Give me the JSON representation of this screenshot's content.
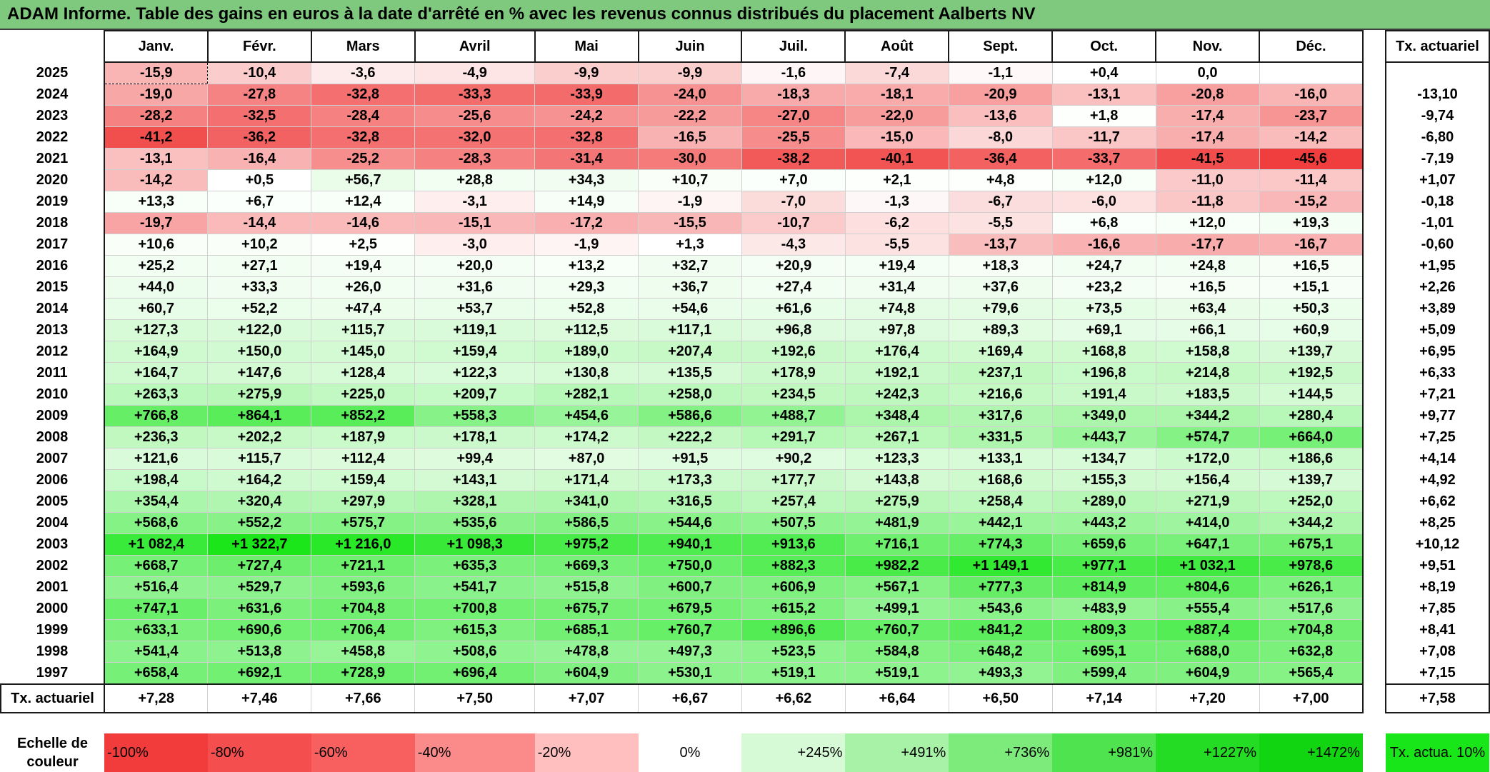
{
  "title": "ADAM Informe. Table des gains en euros à la date d'arrêté en % avec les revenus connus distribués du placement Aalberts NV",
  "months": [
    "Janv.",
    "Févr.",
    "Mars",
    "Avril",
    "Mai",
    "Juin",
    "Juil.",
    "Août",
    "Sept.",
    "Oct.",
    "Nov.",
    "Déc."
  ],
  "actuarial_header": "Tx. actuariel",
  "rows": [
    {
      "year": "2025",
      "values": [
        "-15,9",
        "-10,4",
        "-3,6",
        "-4,9",
        "-9,9",
        "-9,9",
        "-1,6",
        "-7,4",
        "-1,1",
        "+0,4",
        "0,0",
        ""
      ],
      "rate": ""
    },
    {
      "year": "2024",
      "values": [
        "-19,0",
        "-27,8",
        "-32,8",
        "-33,3",
        "-33,9",
        "-24,0",
        "-18,3",
        "-18,1",
        "-20,9",
        "-13,1",
        "-20,8",
        "-16,0"
      ],
      "rate": "-13,10"
    },
    {
      "year": "2023",
      "values": [
        "-28,2",
        "-32,5",
        "-28,4",
        "-25,6",
        "-24,2",
        "-22,2",
        "-27,0",
        "-22,0",
        "-13,6",
        "+1,8",
        "-17,4",
        "-23,7"
      ],
      "rate": "-9,74"
    },
    {
      "year": "2022",
      "values": [
        "-41,2",
        "-36,2",
        "-32,8",
        "-32,0",
        "-32,8",
        "-16,5",
        "-25,5",
        "-15,0",
        "-8,0",
        "-11,7",
        "-17,4",
        "-14,2"
      ],
      "rate": "-6,80"
    },
    {
      "year": "2021",
      "values": [
        "-13,1",
        "-16,4",
        "-25,2",
        "-28,3",
        "-31,4",
        "-30,0",
        "-38,2",
        "-40,1",
        "-36,4",
        "-33,7",
        "-41,5",
        "-45,6"
      ],
      "rate": "-7,19"
    },
    {
      "year": "2020",
      "values": [
        "-14,2",
        "+0,5",
        "+56,7",
        "+28,8",
        "+34,3",
        "+10,7",
        "+7,0",
        "+2,1",
        "+4,8",
        "+12,0",
        "-11,0",
        "-11,4"
      ],
      "rate": "+1,07"
    },
    {
      "year": "2019",
      "values": [
        "+13,3",
        "+6,7",
        "+12,4",
        "-3,1",
        "+14,9",
        "-1,9",
        "-7,0",
        "-1,3",
        "-6,7",
        "-6,0",
        "-11,8",
        "-15,2"
      ],
      "rate": "-0,18"
    },
    {
      "year": "2018",
      "values": [
        "-19,7",
        "-14,4",
        "-14,6",
        "-15,1",
        "-17,2",
        "-15,5",
        "-10,7",
        "-6,2",
        "-5,5",
        "+6,8",
        "+12,0",
        "+19,3"
      ],
      "rate": "-1,01"
    },
    {
      "year": "2017",
      "values": [
        "+10,6",
        "+10,2",
        "+2,5",
        "-3,0",
        "-1,9",
        "+1,3",
        "-4,3",
        "-5,5",
        "-13,7",
        "-16,6",
        "-17,7",
        "-16,7"
      ],
      "rate": "-0,60"
    },
    {
      "year": "2016",
      "values": [
        "+25,2",
        "+27,1",
        "+19,4",
        "+20,0",
        "+13,2",
        "+32,7",
        "+20,9",
        "+19,4",
        "+18,3",
        "+24,7",
        "+24,8",
        "+16,5"
      ],
      "rate": "+1,95"
    },
    {
      "year": "2015",
      "values": [
        "+44,0",
        "+33,3",
        "+26,0",
        "+31,6",
        "+29,3",
        "+36,7",
        "+27,4",
        "+31,4",
        "+37,6",
        "+23,2",
        "+16,5",
        "+15,1"
      ],
      "rate": "+2,26"
    },
    {
      "year": "2014",
      "values": [
        "+60,7",
        "+52,2",
        "+47,4",
        "+53,7",
        "+52,8",
        "+54,6",
        "+61,6",
        "+74,8",
        "+79,6",
        "+73,5",
        "+63,4",
        "+50,3"
      ],
      "rate": "+3,89"
    },
    {
      "year": "2013",
      "values": [
        "+127,3",
        "+122,0",
        "+115,7",
        "+119,1",
        "+112,5",
        "+117,1",
        "+96,8",
        "+97,8",
        "+89,3",
        "+69,1",
        "+66,1",
        "+60,9"
      ],
      "rate": "+5,09"
    },
    {
      "year": "2012",
      "values": [
        "+164,9",
        "+150,0",
        "+145,0",
        "+159,4",
        "+189,0",
        "+207,4",
        "+192,6",
        "+176,4",
        "+169,4",
        "+168,8",
        "+158,8",
        "+139,7"
      ],
      "rate": "+6,95"
    },
    {
      "year": "2011",
      "values": [
        "+164,7",
        "+147,6",
        "+128,4",
        "+122,3",
        "+130,8",
        "+135,5",
        "+178,9",
        "+192,1",
        "+237,1",
        "+196,8",
        "+214,8",
        "+192,5"
      ],
      "rate": "+6,33"
    },
    {
      "year": "2010",
      "values": [
        "+263,3",
        "+275,9",
        "+225,0",
        "+209,7",
        "+282,1",
        "+258,0",
        "+234,5",
        "+242,3",
        "+216,6",
        "+191,4",
        "+183,5",
        "+144,5"
      ],
      "rate": "+7,21"
    },
    {
      "year": "2009",
      "values": [
        "+766,8",
        "+864,1",
        "+852,2",
        "+558,3",
        "+454,6",
        "+586,6",
        "+488,7",
        "+348,4",
        "+317,6",
        "+349,0",
        "+344,2",
        "+280,4"
      ],
      "rate": "+9,77"
    },
    {
      "year": "2008",
      "values": [
        "+236,3",
        "+202,2",
        "+187,9",
        "+178,1",
        "+174,2",
        "+222,2",
        "+291,7",
        "+267,1",
        "+331,5",
        "+443,7",
        "+574,7",
        "+664,0"
      ],
      "rate": "+7,25"
    },
    {
      "year": "2007",
      "values": [
        "+121,6",
        "+115,7",
        "+112,4",
        "+99,4",
        "+87,0",
        "+91,5",
        "+90,2",
        "+123,3",
        "+133,1",
        "+134,7",
        "+172,0",
        "+186,6"
      ],
      "rate": "+4,14"
    },
    {
      "year": "2006",
      "values": [
        "+198,4",
        "+164,2",
        "+159,4",
        "+143,1",
        "+171,4",
        "+173,3",
        "+177,7",
        "+143,8",
        "+168,6",
        "+155,3",
        "+156,4",
        "+139,7"
      ],
      "rate": "+4,92"
    },
    {
      "year": "2005",
      "values": [
        "+354,4",
        "+320,4",
        "+297,9",
        "+328,1",
        "+341,0",
        "+316,5",
        "+257,4",
        "+275,9",
        "+258,4",
        "+289,0",
        "+271,9",
        "+252,0"
      ],
      "rate": "+6,62"
    },
    {
      "year": "2004",
      "values": [
        "+568,6",
        "+552,2",
        "+575,7",
        "+535,6",
        "+586,5",
        "+544,6",
        "+507,5",
        "+481,9",
        "+442,1",
        "+443,2",
        "+414,0",
        "+344,2"
      ],
      "rate": "+8,25"
    },
    {
      "year": "2003",
      "values": [
        "+1 082,4",
        "+1 322,7",
        "+1 216,0",
        "+1 098,3",
        "+975,2",
        "+940,1",
        "+913,6",
        "+716,1",
        "+774,3",
        "+659,6",
        "+647,1",
        "+675,1"
      ],
      "rate": "+10,12"
    },
    {
      "year": "2002",
      "values": [
        "+668,7",
        "+727,4",
        "+721,1",
        "+635,3",
        "+669,3",
        "+750,0",
        "+882,3",
        "+982,2",
        "+1 149,1",
        "+977,1",
        "+1 032,1",
        "+978,6"
      ],
      "rate": "+9,51"
    },
    {
      "year": "2001",
      "values": [
        "+516,4",
        "+529,7",
        "+593,6",
        "+541,7",
        "+515,8",
        "+600,7",
        "+606,9",
        "+567,1",
        "+777,3",
        "+814,9",
        "+804,6",
        "+626,1"
      ],
      "rate": "+8,19"
    },
    {
      "year": "2000",
      "values": [
        "+747,1",
        "+631,6",
        "+704,8",
        "+700,8",
        "+675,7",
        "+679,5",
        "+615,2",
        "+499,1",
        "+543,6",
        "+483,9",
        "+555,4",
        "+517,6"
      ],
      "rate": "+7,85"
    },
    {
      "year": "1999",
      "values": [
        "+633,1",
        "+690,6",
        "+706,4",
        "+615,3",
        "+685,1",
        "+760,7",
        "+896,6",
        "+760,7",
        "+841,2",
        "+809,3",
        "+887,4",
        "+704,8"
      ],
      "rate": "+8,41"
    },
    {
      "year": "1998",
      "values": [
        "+541,4",
        "+513,8",
        "+458,8",
        "+508,6",
        "+478,8",
        "+497,3",
        "+523,5",
        "+584,8",
        "+648,2",
        "+695,1",
        "+688,0",
        "+632,8"
      ],
      "rate": "+7,08"
    },
    {
      "year": "1997",
      "values": [
        "+658,4",
        "+692,1",
        "+728,9",
        "+696,4",
        "+604,9",
        "+530,1",
        "+519,1",
        "+519,1",
        "+493,3",
        "+599,4",
        "+604,9",
        "+565,4"
      ],
      "rate": "+7,15"
    }
  ],
  "totals": {
    "label": "Tx. actuariel",
    "values": [
      "+7,28",
      "+7,46",
      "+7,66",
      "+7,50",
      "+7,07",
      "+6,67",
      "+6,62",
      "+6,64",
      "+6,50",
      "+7,14",
      "+7,20",
      "+7,00"
    ],
    "overall": "+7,58"
  },
  "scale": {
    "label": "Echelle de couleur",
    "values": [
      "-100%",
      "-80%",
      "-60%",
      "-40%",
      "-20%",
      "0%",
      "+245%",
      "+491%",
      "+736%",
      "+981%",
      "+1227%",
      "+1472%"
    ],
    "actuarial_label": "Tx. actua. 10%"
  },
  "colors": {
    "title_bg": "#7ec97e",
    "negative_max": "#f03c3c",
    "positive_max": "#19e619",
    "neutral": "#ffffff",
    "scale_cells": [
      "#f23c3c",
      "#f54e4e",
      "#f86060",
      "#fb8b8b",
      "#ffbfbf",
      "#ffffff",
      "#d6fad6",
      "#a8f2a8",
      "#7ceb7c",
      "#4fe44f",
      "#25dc25",
      "#12d512"
    ],
    "actuarial_scale_bg": "#19e619"
  }
}
